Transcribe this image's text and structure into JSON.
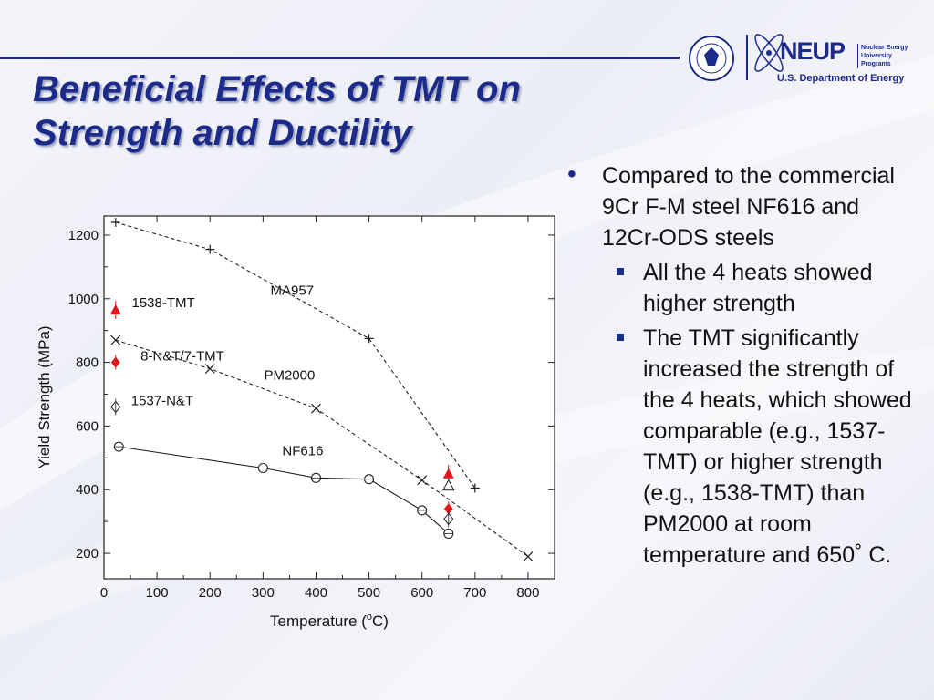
{
  "slide": {
    "title_line1": "Beneficial Effects of TMT on",
    "title_line2": "Strength and Ductility"
  },
  "logos": {
    "neup_text": "NEUP",
    "neup_sub": "Nuclear Energy University Programs",
    "doe_text": "U.S. Department of Energy",
    "seal_icon": "doe-seal-icon",
    "atom_icon": "atom-icon"
  },
  "bullets": {
    "main": "Compared to the commercial 9Cr F-M steel NF616 and 12Cr-ODS steels",
    "sub1": "All the 4 heats showed higher strength",
    "sub2": "The TMT significantly increased the strength of the 4 heats, which showed comparable (e.g., 1537-TMT) or higher strength (e.g., 1538-TMT) than PM2000 at room temperature and 650˚ C."
  },
  "chart_data": {
    "type": "scatter",
    "xlabel": "Temperature (",
    "xlabel_sup": "o",
    "xlabel_end": "C)",
    "ylabel": "Yield Strength (MPa)",
    "xlim": [
      0,
      850
    ],
    "ylim": [
      120,
      1260
    ],
    "xticks": [
      0,
      100,
      200,
      300,
      400,
      500,
      600,
      700,
      800
    ],
    "yticks": [
      200,
      400,
      600,
      800,
      1000,
      1200
    ],
    "series": [
      {
        "name": "MA957",
        "style": "dashed",
        "marker": "plus",
        "x": [
          22,
          200,
          500,
          700
        ],
        "y": [
          1240,
          1155,
          875,
          405
        ]
      },
      {
        "name": "PM2000",
        "style": "dashed",
        "marker": "cross",
        "x": [
          22,
          200,
          400,
          600,
          800
        ],
        "y": [
          870,
          780,
          655,
          430,
          190
        ]
      },
      {
        "name": "NF616",
        "style": "solid",
        "marker": "circle",
        "x": [
          28,
          300,
          400,
          500,
          600,
          650
        ],
        "y": [
          535,
          468,
          437,
          433,
          335,
          262
        ]
      },
      {
        "name": "1538-TMT",
        "style": "none",
        "marker": "triangle-filled",
        "x": [
          22,
          650
        ],
        "y": [
          965,
          450
        ]
      },
      {
        "name": "8-N&T/7-TMT",
        "style": "none",
        "marker": "diamond-filled",
        "x": [
          22,
          650
        ],
        "y": [
          800,
          340
        ]
      },
      {
        "name": "1537-N&T",
        "style": "none",
        "marker": "diamond-open",
        "x": [
          22,
          650
        ],
        "y": [
          660,
          308
        ]
      },
      {
        "name": "",
        "style": "none",
        "marker": "triangle-open",
        "x": [
          650
        ],
        "y": [
          413
        ]
      }
    ],
    "annotations": [
      {
        "text": "MA957",
        "x": 355,
        "y": 1012
      },
      {
        "text": "PM2000",
        "x": 350,
        "y": 746
      },
      {
        "text": "NF616",
        "x": 375,
        "y": 508
      },
      {
        "text": "1538-TMT",
        "x": 112,
        "y": 974
      },
      {
        "text": "8-N&T/7-TMT",
        "x": 148,
        "y": 806
      },
      {
        "text": "1537-N&T",
        "x": 110,
        "y": 665
      }
    ],
    "colors": {
      "red": "#e8141c",
      "black": "#222222"
    },
    "grid": false
  }
}
